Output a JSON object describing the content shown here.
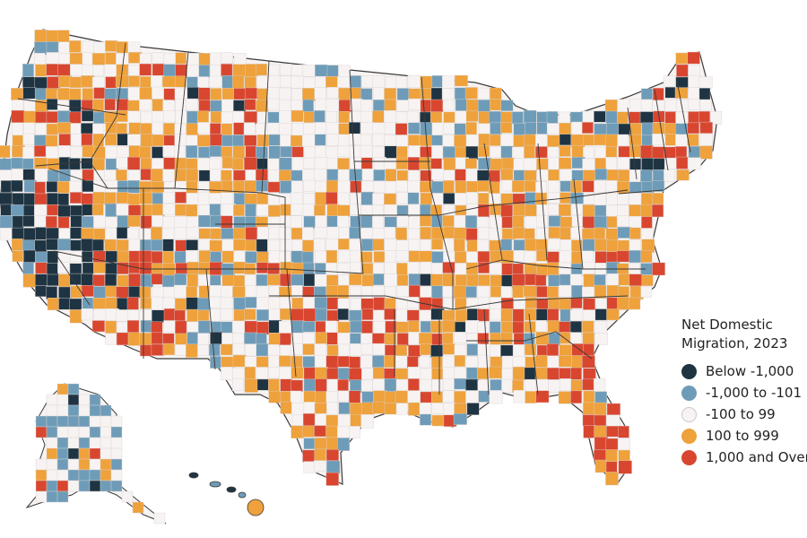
{
  "legend": {
    "title_line1": "Net Domestic",
    "title_line2": "Migration, 2023",
    "items": [
      {
        "label": "Below -1,000",
        "color": "#1f3442"
      },
      {
        "label": "-1,000 to -101",
        "color": "#6e9cb8"
      },
      {
        "label": "-100 to 99",
        "color": "#f7f3f2"
      },
      {
        "label": "100 to 999",
        "color": "#efa13b"
      },
      {
        "label": "1,000 and Over",
        "color": "#d9462f"
      }
    ]
  }
}
